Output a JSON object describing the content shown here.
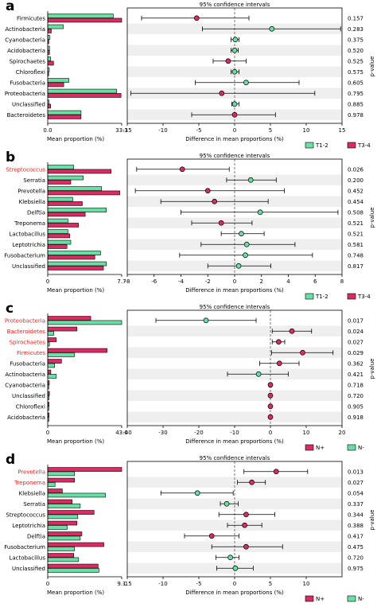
{
  "colors": {
    "group1": "#66e0a3",
    "group2": "#dd2a63",
    "highlight_label": "#e8231f",
    "row_band": "#efefef",
    "edge": "#000000"
  },
  "chart_data": [
    {
      "type": "extended_error_bar",
      "panel_letter": "a",
      "title": "95% confidence intervals",
      "xlabel_left": "Mean proportion (%)",
      "xlabel_right": "Difference in mean proportions (%)",
      "ylabel_right": "p-value",
      "left_xlim": [
        0,
        33.3
      ],
      "left_ticks": [
        "0.0",
        "33.3"
      ],
      "right_xlim": [
        -15,
        15
      ],
      "right_ticks": [
        -15,
        -10,
        -5,
        0,
        5,
        10,
        15
      ],
      "legend": [
        "T1-2",
        "T3-4"
      ],
      "legend_colors": [
        "#66e0a3",
        "#dd2a63"
      ],
      "bar_order": [
        "series1",
        "series2"
      ],
      "categories": [
        "Firmicutes",
        "Actinobacteria",
        "Cyanobacteria",
        "Acidobacteria",
        "Spirochaetes",
        "Chloroflexi",
        "Fusobacteria",
        "Proteobacteria",
        "Unclassified",
        "Bacteroidetes"
      ],
      "highlighted": [
        false,
        false,
        false,
        false,
        false,
        false,
        false,
        false,
        false,
        false
      ],
      "series1": [
        29.5,
        7.0,
        1.0,
        0.8,
        1.3,
        0.7,
        9.5,
        31.0,
        0.5,
        15.0
      ],
      "series2": [
        33.3,
        1.6,
        0.5,
        0.8,
        2.6,
        0.4,
        7.2,
        33.0,
        1.3,
        15.0
      ],
      "diff": [
        -5.3,
        5.2,
        0.1,
        0.0,
        -0.9,
        0.0,
        1.6,
        -1.8,
        0.0,
        0.0
      ],
      "ci_low": [
        -13.0,
        -4.5,
        -0.5,
        -0.5,
        -3.0,
        -0.5,
        -5.5,
        -14.5,
        -0.4,
        -6.0
      ],
      "ci_high": [
        2.0,
        14.8,
        0.6,
        0.5,
        1.6,
        0.6,
        9.0,
        11.2,
        0.6,
        5.7
      ],
      "point_color": [
        "group2",
        "group1",
        "group1",
        "group1",
        "group2",
        "group1",
        "group1",
        "group2",
        "group1",
        "group2"
      ],
      "p_values": [
        "0.157",
        "0.283",
        "0.375",
        "0.520",
        "0.525",
        "0.575",
        "0.605",
        "0.795",
        "0.885",
        "0.978"
      ]
    },
    {
      "type": "extended_error_bar",
      "panel_letter": "b",
      "title": "95% confidence intervals",
      "xlabel_left": "Mean proportion (%)",
      "xlabel_right": "Difference in mean proportions (%)",
      "ylabel_right": "p-value",
      "left_xlim": [
        0,
        7.7
      ],
      "left_ticks": [
        "0",
        "7.7"
      ],
      "right_xlim": [
        -8,
        8
      ],
      "right_ticks": [
        -8,
        -6,
        -4,
        -2,
        0,
        2,
        4,
        6,
        8
      ],
      "legend": [
        "T1-2",
        "T3-4"
      ],
      "legend_colors": [
        "#66e0a3",
        "#dd2a63"
      ],
      "bar_order": [
        "series1",
        "series2"
      ],
      "categories": [
        "Streptococcus",
        "Serratia",
        "Prevotella",
        "Klebsiella",
        "Delftia",
        "Treponema",
        "Lactobacillus",
        "Leptotrichia",
        "Fusobacterium",
        "Unclassified"
      ],
      "highlighted": [
        true,
        false,
        false,
        false,
        false,
        false,
        false,
        false,
        false,
        false
      ],
      "series1": [
        2.7,
        3.7,
        5.6,
        2.6,
        6.1,
        2.1,
        2.1,
        2.4,
        5.5,
        6.1
      ],
      "series2": [
        6.6,
        2.4,
        7.5,
        3.6,
        3.9,
        3.2,
        2.3,
        2.0,
        4.9,
        5.8
      ],
      "diff": [
        -3.9,
        1.2,
        -2.0,
        -1.5,
        1.9,
        -1.0,
        0.5,
        0.9,
        0.8,
        0.3
      ],
      "ci_low": [
        -7.3,
        -0.6,
        -7.4,
        -5.5,
        -4.0,
        -3.2,
        -1.0,
        -2.5,
        -4.1,
        -2.0
      ],
      "ci_high": [
        -0.4,
        3.1,
        3.7,
        2.5,
        7.7,
        1.3,
        2.2,
        4.5,
        5.8,
        2.7
      ],
      "point_color": [
        "group2",
        "group1",
        "group2",
        "group2",
        "group1",
        "group2",
        "group1",
        "group1",
        "group1",
        "group1"
      ],
      "p_values": [
        "0.026",
        "0.200",
        "0.452",
        "0.454",
        "0.508",
        "0.521",
        "0.521",
        "0.581",
        "0.748",
        "0.817"
      ]
    },
    {
      "type": "extended_error_bar",
      "panel_letter": "c",
      "title": "95% confidence intervals",
      "xlabel_left": "Mean proportion (%)",
      "xlabel_right": "Difference in mean proportions (%)",
      "ylabel_right": "p-value",
      "left_xlim": [
        0,
        43.0
      ],
      "left_ticks": [
        "0",
        "43.0"
      ],
      "right_xlim": [
        -40,
        20
      ],
      "right_ticks": [
        -40,
        -30,
        -20,
        -10,
        0,
        10,
        20
      ],
      "legend": [
        "N+",
        "N-"
      ],
      "legend_colors": [
        "#dd2a63",
        "#66e0a3"
      ],
      "bar_order": [
        "series2",
        "series1"
      ],
      "categories": [
        "Proteobacteria",
        "Bacteroidetes",
        "Spirochaetes",
        "Firmicutes",
        "Fusobacteria",
        "Actinobacteria",
        "Cyanobacteria",
        "Unclassified",
        "Chloroflexi",
        "Acidobacteria"
      ],
      "highlighted": [
        true,
        true,
        true,
        true,
        false,
        false,
        false,
        false,
        false,
        false
      ],
      "series1": [
        43.0,
        3.5,
        1.0,
        15.5,
        4.0,
        5.0,
        0.6,
        0.8,
        0.6,
        0.7
      ],
      "series2": [
        25.0,
        17.0,
        5.0,
        34.5,
        8.0,
        1.8,
        0.9,
        1.0,
        0.8,
        0.8
      ],
      "diff": [
        -18.0,
        6.0,
        2.3,
        9.0,
        2.5,
        -3.3,
        0.0,
        0.0,
        0.0,
        0.0
      ],
      "ci_low": [
        -32.0,
        0.5,
        0.5,
        0.3,
        -3.0,
        -12.0,
        -0.3,
        -0.3,
        -0.3,
        -0.3
      ],
      "ci_high": [
        -4.0,
        11.5,
        4.0,
        17.5,
        8.0,
        5.0,
        0.3,
        0.3,
        0.3,
        0.3
      ],
      "point_color": [
        "group1",
        "group2",
        "group2",
        "group2",
        "group2",
        "group1",
        "group2",
        "group2",
        "group2",
        "group2"
      ],
      "p_values": [
        "0.017",
        "0.024",
        "0.027",
        "0.029",
        "0.362",
        "0.421",
        "0.718",
        "0.720",
        "0.905",
        "0.918"
      ]
    },
    {
      "type": "extended_error_bar",
      "panel_letter": "d",
      "title": "95% confidence intervals",
      "xlabel_left": "Mean proportion (%)",
      "xlabel_right": "Difference in mean proportions (%)",
      "ylabel_right": "p-value",
      "left_xlim": [
        0,
        9.1
      ],
      "left_ticks": [
        "0",
        "9.1"
      ],
      "right_xlim": [
        -15,
        15
      ],
      "right_ticks": [
        -15,
        -10,
        -5,
        0,
        5,
        10
      ],
      "legend": [
        "N+",
        "N-"
      ],
      "legend_colors": [
        "#dd2a63",
        "#66e0a3"
      ],
      "bar_order": [
        "series2",
        "series1"
      ],
      "categories": [
        "Prevotella",
        "Treponema",
        "Klebsiella",
        "Serratia",
        "Streptococcus",
        "Leptotrichia",
        "Delftia",
        "Fusobacterium",
        "Lactobacillus",
        "Unclassified"
      ],
      "highlighted": [
        true,
        true,
        false,
        false,
        false,
        false,
        false,
        false,
        false,
        false
      ],
      "series1": [
        3.3,
        0.9,
        7.1,
        4.0,
        3.7,
        2.4,
        4.0,
        3.3,
        3.8,
        6.3
      ],
      "series2": [
        9.1,
        3.3,
        1.8,
        3.0,
        5.7,
        3.6,
        4.2,
        6.9,
        3.2,
        6.2
      ],
      "diff": [
        5.8,
        2.4,
        -5.2,
        -1.1,
        1.6,
        1.4,
        -3.2,
        1.6,
        -0.6,
        0.1
      ],
      "ci_low": [
        1.3,
        0.4,
        -10.3,
        -2.0,
        -2.2,
        -1.0,
        -7.0,
        -3.2,
        -2.6,
        -2.5
      ],
      "ci_high": [
        10.2,
        4.3,
        -0.2,
        0.5,
        5.6,
        3.8,
        0.6,
        6.7,
        0.6,
        2.6
      ],
      "point_color": [
        "group2",
        "group2",
        "group1",
        "group1",
        "group2",
        "group2",
        "group2",
        "group2",
        "group1",
        "group1"
      ],
      "p_values": [
        "0.013",
        "0.027",
        "0.054",
        "0.337",
        "0.344",
        "0.388",
        "0.417",
        "0.475",
        "0.720",
        "0.975"
      ]
    }
  ]
}
